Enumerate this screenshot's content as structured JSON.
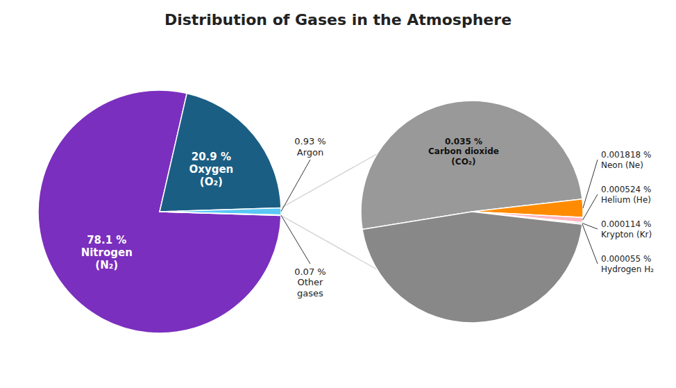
{
  "chart_data": [
    {
      "type": "pie",
      "title": "Distribution of Gases in the Atmosphere",
      "categories": [
        "Nitrogen\n(N₂)",
        "Oxygen\n(O₂)",
        "Argon",
        "Other\ngases"
      ],
      "values": [
        78.1,
        20.9,
        0.93,
        0.07
      ],
      "value_labels": [
        "78.1 %",
        "20.9 %",
        "0.93 %",
        "0.07 %"
      ],
      "colors": [
        "#7B2FBE",
        "#1B5E84",
        "#5BC8F5",
        "#F5C842"
      ],
      "data_labels": true
    },
    {
      "type": "pie",
      "categories": [
        "Carbon dioxide\n(CO₂)",
        "Neon (Ne)",
        "Helium (He)",
        "Krypton (Kr)",
        "Hydrogen  H₂",
        null
      ],
      "values": [
        0.035,
        0.001818,
        0.000524,
        0.000114,
        5.5e-05,
        0.031489
      ],
      "value_labels": [
        "0.035 %",
        "0.001818 %",
        "0.000524 %",
        "0.000114 %",
        "0.000055 %",
        null
      ],
      "colors": [
        "#999999",
        "#FF8C00",
        "#FFB6C1",
        "#7B1A2E",
        "#D0D0D0",
        "#888888"
      ],
      "data_labels": true
    }
  ]
}
